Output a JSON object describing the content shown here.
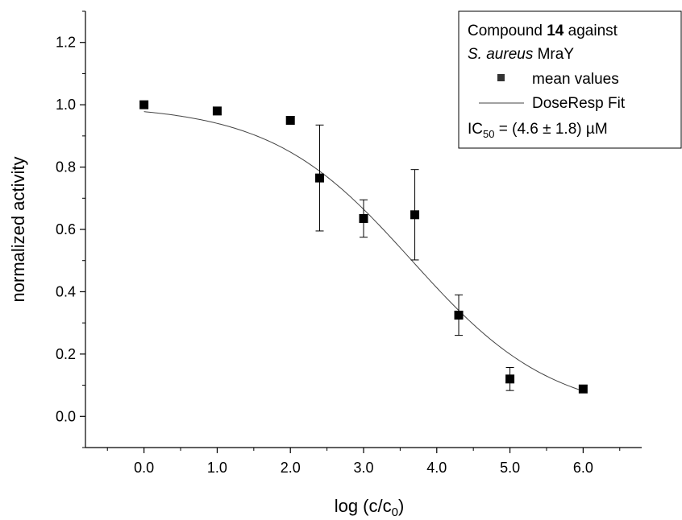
{
  "chart_data": {
    "type": "scatter",
    "xlabel": "log (c/c",
    "xlabel_sub": "0",
    "xlabel_close": ")",
    "ylabel": "normalized activity",
    "xlim": [
      -0.8,
      6.8
    ],
    "ylim": [
      -0.1,
      1.3
    ],
    "x_ticks": [
      0,
      1,
      2,
      3,
      4,
      5,
      6
    ],
    "x_tick_labels": [
      "0.0",
      "1.0",
      "2.0",
      "3.0",
      "4.0",
      "5.0",
      "6.0"
    ],
    "y_ticks": [
      0,
      0.2,
      0.4,
      0.6,
      0.8,
      1.0,
      1.2
    ],
    "y_tick_labels": [
      "0.0",
      "0.2",
      "0.4",
      "0.6",
      "0.8",
      "1.0",
      "1.2"
    ],
    "grid": false,
    "legend_position": "top-right",
    "series": [
      {
        "name": "mean values",
        "kind": "scatter",
        "color": "#000000",
        "x": [
          0.0,
          1.0,
          2.0,
          2.4,
          3.0,
          3.7,
          4.3,
          5.0,
          6.0
        ],
        "y": [
          1.0,
          0.98,
          0.95,
          0.765,
          0.635,
          0.647,
          0.325,
          0.12,
          0.088
        ],
        "error": [
          0,
          0,
          0,
          0.17,
          0.06,
          0.145,
          0.065,
          0.037,
          0
        ]
      },
      {
        "name": "DoseResp Fit",
        "kind": "line",
        "color": "#444444",
        "model": {
          "bottom": 0.0,
          "top": 1.0,
          "logx0": 3.66,
          "hill": 0.45
        },
        "x_range": [
          0.0,
          6.0
        ]
      }
    ],
    "legend": {
      "title_pre": "Compound ",
      "title_bold": "14",
      "title_post": " against",
      "organism_italic": "S. aureus",
      "organism_rest": " MraY",
      "ic50_pre": "IC",
      "ic50_sub": "50",
      "ic50_post": " = (4.6 ± 1.8) µM"
    }
  }
}
